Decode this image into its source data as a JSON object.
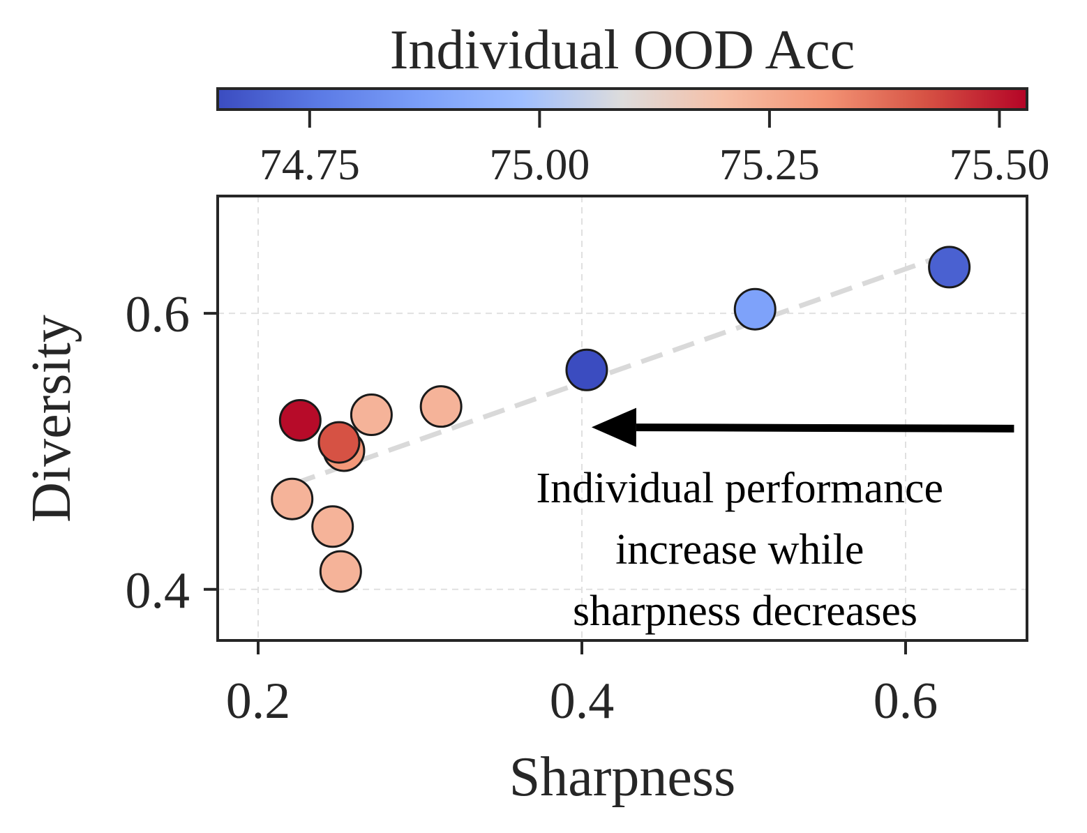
{
  "chart_data": {
    "type": "scatter",
    "title": "",
    "xlabel": "Sharpness",
    "ylabel": "Diversity",
    "xlim": [
      0.175,
      0.675
    ],
    "ylim": [
      0.363,
      0.685
    ],
    "xticks": [
      0.2,
      0.4,
      0.6
    ],
    "yticks": [
      0.4,
      0.6
    ],
    "xtick_labels": [
      "0.2",
      "0.4",
      "0.6"
    ],
    "ytick_labels": [
      "0.4",
      "0.6"
    ],
    "grid": true,
    "points": [
      {
        "x": 0.627,
        "y": 0.6335,
        "c": 74.7
      },
      {
        "x": 0.507,
        "y": 0.603,
        "c": 74.88
      },
      {
        "x": 0.403,
        "y": 0.559,
        "c": 74.65
      },
      {
        "x": 0.313,
        "y": 0.5325,
        "c": 75.23
      },
      {
        "x": 0.27,
        "y": 0.5265,
        "c": 75.23
      },
      {
        "x": 0.226,
        "y": 0.5225,
        "c": 75.52
      },
      {
        "x": 0.253,
        "y": 0.5005,
        "c": 75.3
      },
      {
        "x": 0.25,
        "y": 0.5065,
        "c": 75.42
      },
      {
        "x": 0.221,
        "y": 0.4655,
        "c": 75.23
      },
      {
        "x": 0.246,
        "y": 0.4455,
        "c": 75.23
      },
      {
        "x": 0.251,
        "y": 0.413,
        "c": 75.23
      }
    ],
    "trend_line": {
      "x": [
        0.222,
        0.625
      ],
      "y": [
        0.4765,
        0.6425
      ]
    },
    "annotation": {
      "lines": [
        "Individual performance",
        "increase while",
        "sharpness decreases"
      ],
      "arrow_from": [
        0.667,
        0.5165
      ],
      "arrow_to": [
        0.406,
        0.5175
      ]
    },
    "colorbar": {
      "label": "Individual OOD Acc",
      "cmap": "coolwarm",
      "range": [
        74.65,
        75.53
      ],
      "ticks": [
        74.75,
        75.0,
        75.25,
        75.5
      ],
      "tick_labels": [
        "74.75",
        "75.00",
        "75.25",
        "75.50"
      ],
      "orientation": "horizontal",
      "placement": "top"
    }
  }
}
